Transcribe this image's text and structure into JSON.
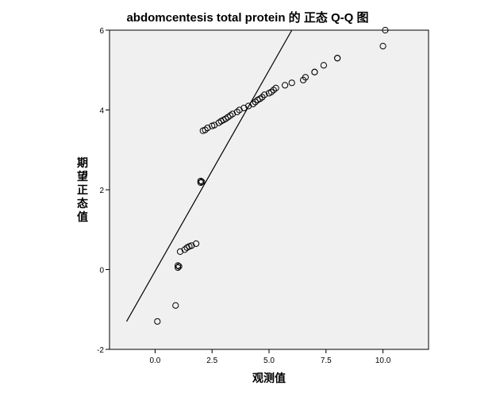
{
  "chart_data": {
    "type": "scatter",
    "title": "abdomcentesis total protein 的 正态 Q-Q 图",
    "xlabel": "观测值",
    "ylabel": "期望正态值",
    "xlim": [
      -2.0,
      12.0
    ],
    "ylim": [
      -2,
      6
    ],
    "x_ticks": [
      "0.0",
      "2.5",
      "5.0",
      "7.5",
      "10.0"
    ],
    "x_tick_values": [
      0,
      2.5,
      5,
      7.5,
      10
    ],
    "y_ticks": [
      "-2",
      "0",
      "2",
      "4",
      "6"
    ],
    "y_tick_values": [
      -2,
      0,
      2,
      4,
      6
    ],
    "grid": false,
    "reference_line": {
      "x": [
        -1.25,
        6.0
      ],
      "y": [
        -1.3,
        6.0
      ]
    },
    "points": {
      "x": [
        0.1,
        0.9,
        1.0,
        1.0,
        1.05,
        1.1,
        1.3,
        1.4,
        1.5,
        1.6,
        1.8,
        2.0,
        2.0,
        2.05,
        2.1,
        2.2,
        2.3,
        2.5,
        2.6,
        2.8,
        2.9,
        3.0,
        3.1,
        3.2,
        3.3,
        3.4,
        3.6,
        3.7,
        3.9,
        4.1,
        4.3,
        4.4,
        4.5,
        4.6,
        4.7,
        4.8,
        5.0,
        5.1,
        5.2,
        5.3,
        5.7,
        6.0,
        6.5,
        6.6,
        7.0,
        7.0,
        7.4,
        8.0,
        8.0,
        10.0,
        10.1
      ],
      "y": [
        -1.3,
        -0.9,
        0.05,
        0.1,
        0.08,
        0.45,
        0.5,
        0.55,
        0.58,
        0.6,
        0.65,
        2.18,
        2.22,
        2.2,
        3.48,
        3.5,
        3.55,
        3.6,
        3.62,
        3.68,
        3.72,
        3.75,
        3.78,
        3.82,
        3.86,
        3.9,
        3.95,
        4.0,
        4.05,
        4.1,
        4.15,
        4.2,
        4.25,
        4.28,
        4.32,
        4.38,
        4.42,
        4.45,
        4.5,
        4.55,
        4.62,
        4.68,
        4.75,
        4.82,
        4.95,
        4.95,
        5.12,
        5.3,
        5.3,
        5.6,
        6.0
      ]
    }
  }
}
